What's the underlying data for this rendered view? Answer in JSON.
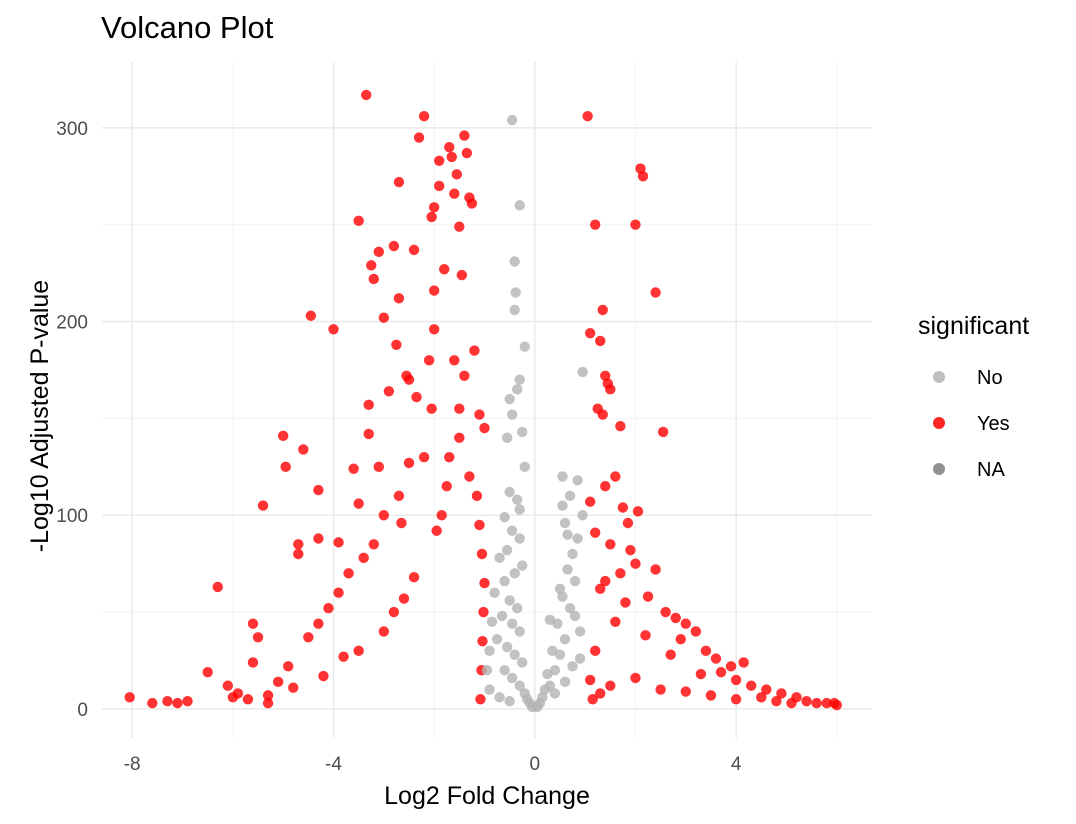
{
  "chart_data": {
    "type": "scatter",
    "title": "Volcano Plot",
    "xlabel": "Log2 Fold Change",
    "ylabel": "-Log10 Adjusted P-value",
    "xlim": [
      -8.6,
      6.7
    ],
    "ylim": [
      -15,
      334
    ],
    "x_ticks": [
      -8,
      -4,
      0,
      4
    ],
    "y_ticks": [
      0,
      100,
      200,
      300
    ],
    "x_tick_labels": [
      "-8",
      "-4",
      "0",
      "4"
    ],
    "y_tick_labels": [
      "0",
      "100",
      "200",
      "300"
    ],
    "grid": true,
    "legend": {
      "title": "significant",
      "position": "right",
      "entries": [
        {
          "label": "No",
          "color": "#b3b3b3"
        },
        {
          "label": "Yes",
          "color": "#ff0000"
        },
        {
          "label": "NA",
          "color": "#7f7f7f"
        }
      ]
    },
    "series": [
      {
        "name": "Yes",
        "color": "#ff0000",
        "points": [
          [
            -8.05,
            6
          ],
          [
            -6.3,
            63
          ],
          [
            -6.1,
            12
          ],
          [
            -5.9,
            8
          ],
          [
            -5.7,
            5
          ],
          [
            -5.6,
            44
          ],
          [
            -5.5,
            37
          ],
          [
            -5.6,
            24
          ],
          [
            -5.4,
            105
          ],
          [
            -5.3,
            3
          ],
          [
            -5.0,
            141
          ],
          [
            -4.95,
            125
          ],
          [
            -4.6,
            134
          ],
          [
            -4.45,
            203
          ],
          [
            -4.3,
            113
          ],
          [
            -4.7,
            85
          ],
          [
            -4.7,
            80
          ],
          [
            -4.3,
            88
          ],
          [
            -4.0,
            196
          ],
          [
            -3.9,
            86
          ],
          [
            -3.6,
            124
          ],
          [
            -3.5,
            252
          ],
          [
            -3.5,
            106
          ],
          [
            -3.35,
            317
          ],
          [
            -3.3,
            142
          ],
          [
            -3.3,
            157
          ],
          [
            -3.25,
            229
          ],
          [
            -3.2,
            222
          ],
          [
            -3.1,
            236
          ],
          [
            -3.1,
            125
          ],
          [
            -3.0,
            202
          ],
          [
            -2.9,
            164
          ],
          [
            -2.8,
            239
          ],
          [
            -2.75,
            188
          ],
          [
            -2.7,
            272
          ],
          [
            -2.7,
            212
          ],
          [
            -2.65,
            96
          ],
          [
            -2.55,
            172
          ],
          [
            -2.5,
            170
          ],
          [
            -2.4,
            237
          ],
          [
            -2.35,
            161
          ],
          [
            -2.2,
            306
          ],
          [
            -2.3,
            295
          ],
          [
            -2.05,
            254
          ],
          [
            -2.0,
            259
          ],
          [
            -2.0,
            196
          ],
          [
            -2.0,
            216
          ],
          [
            -1.9,
            283
          ],
          [
            -1.9,
            270
          ],
          [
            -1.8,
            227
          ],
          [
            -1.7,
            290
          ],
          [
            -1.65,
            285
          ],
          [
            -1.6,
            266
          ],
          [
            -1.55,
            276
          ],
          [
            -1.5,
            249
          ],
          [
            -1.45,
            224
          ],
          [
            -1.4,
            296
          ],
          [
            -1.35,
            287
          ],
          [
            -1.3,
            264
          ],
          [
            -1.25,
            261
          ],
          [
            -1.1,
            152
          ],
          [
            -1.0,
            145
          ],
          [
            -1.2,
            185
          ],
          [
            -1.4,
            172
          ],
          [
            -1.5,
            155
          ],
          [
            -1.6,
            180
          ],
          [
            -2.1,
            180
          ],
          [
            -2.05,
            155
          ],
          [
            -2.2,
            130
          ],
          [
            -2.5,
            127
          ],
          [
            -2.7,
            110
          ],
          [
            -3.0,
            100
          ],
          [
            -3.2,
            85
          ],
          [
            -3.4,
            78
          ],
          [
            -3.7,
            70
          ],
          [
            -3.9,
            60
          ],
          [
            -4.1,
            52
          ],
          [
            -4.3,
            44
          ],
          [
            -4.5,
            37
          ],
          [
            -4.9,
            22
          ],
          [
            -5.1,
            14
          ],
          [
            -6.5,
            19
          ],
          [
            -6.9,
            4
          ],
          [
            -7.1,
            3
          ],
          [
            -7.3,
            4
          ],
          [
            -7.6,
            3
          ],
          [
            -6.0,
            6
          ],
          [
            -5.3,
            7
          ],
          [
            -4.8,
            11
          ],
          [
            -4.2,
            17
          ],
          [
            -3.8,
            27
          ],
          [
            -3.5,
            30
          ],
          [
            -3.0,
            40
          ],
          [
            -2.8,
            50
          ],
          [
            -2.6,
            57
          ],
          [
            -2.4,
            68
          ],
          [
            -1.95,
            92
          ],
          [
            -1.85,
            100
          ],
          [
            -1.75,
            115
          ],
          [
            -1.7,
            130
          ],
          [
            -1.5,
            140
          ],
          [
            -1.3,
            120
          ],
          [
            -1.15,
            110
          ],
          [
            -1.1,
            95
          ],
          [
            -1.05,
            80
          ],
          [
            -1.0,
            65
          ],
          [
            -1.02,
            50
          ],
          [
            -1.04,
            35
          ],
          [
            -1.06,
            20
          ],
          [
            -1.08,
            5
          ],
          [
            1.05,
            306
          ],
          [
            1.2,
            250
          ],
          [
            2.1,
            279
          ],
          [
            2.15,
            275
          ],
          [
            2.0,
            250
          ],
          [
            2.4,
            215
          ],
          [
            1.35,
            206
          ],
          [
            1.1,
            194
          ],
          [
            1.3,
            190
          ],
          [
            1.4,
            172
          ],
          [
            1.45,
            168
          ],
          [
            1.5,
            165
          ],
          [
            1.25,
            155
          ],
          [
            1.35,
            152
          ],
          [
            1.7,
            146
          ],
          [
            2.55,
            143
          ],
          [
            1.6,
            120
          ],
          [
            1.4,
            115
          ],
          [
            1.1,
            107
          ],
          [
            1.75,
            104
          ],
          [
            2.05,
            102
          ],
          [
            1.85,
            96
          ],
          [
            1.2,
            91
          ],
          [
            1.5,
            85
          ],
          [
            1.9,
            82
          ],
          [
            2.0,
            75
          ],
          [
            2.4,
            72
          ],
          [
            1.7,
            70
          ],
          [
            1.4,
            66
          ],
          [
            1.3,
            62
          ],
          [
            2.25,
            58
          ],
          [
            1.8,
            55
          ],
          [
            2.6,
            50
          ],
          [
            2.8,
            47
          ],
          [
            3.0,
            44
          ],
          [
            3.2,
            40
          ],
          [
            2.9,
            36
          ],
          [
            3.4,
            30
          ],
          [
            3.6,
            26
          ],
          [
            3.9,
            22
          ],
          [
            4.15,
            24
          ],
          [
            3.7,
            19
          ],
          [
            4.0,
            15
          ],
          [
            4.3,
            12
          ],
          [
            4.6,
            10
          ],
          [
            4.9,
            8
          ],
          [
            5.2,
            6
          ],
          [
            5.4,
            4
          ],
          [
            5.6,
            3
          ],
          [
            5.8,
            3
          ],
          [
            5.95,
            3
          ],
          [
            6.0,
            2
          ],
          [
            4.5,
            6
          ],
          [
            4.8,
            4
          ],
          [
            5.1,
            3
          ],
          [
            3.3,
            18
          ],
          [
            2.7,
            28
          ],
          [
            2.2,
            38
          ],
          [
            1.6,
            45
          ],
          [
            1.2,
            30
          ],
          [
            1.1,
            15
          ],
          [
            1.15,
            5
          ],
          [
            1.3,
            8
          ],
          [
            1.5,
            12
          ],
          [
            2.0,
            16
          ],
          [
            2.5,
            10
          ],
          [
            3.0,
            9
          ],
          [
            3.5,
            7
          ],
          [
            4.0,
            5
          ]
        ]
      },
      {
        "name": "No",
        "color": "#b3b3b3",
        "points": [
          [
            -0.45,
            304
          ],
          [
            -0.3,
            260
          ],
          [
            -0.4,
            231
          ],
          [
            -0.38,
            215
          ],
          [
            -0.4,
            206
          ],
          [
            -0.2,
            187
          ],
          [
            -0.3,
            170
          ],
          [
            -0.35,
            165
          ],
          [
            -0.5,
            160
          ],
          [
            -0.45,
            152
          ],
          [
            -0.55,
            140
          ],
          [
            -0.25,
            143
          ],
          [
            -0.2,
            125
          ],
          [
            -0.5,
            112
          ],
          [
            -0.35,
            108
          ],
          [
            -0.3,
            103
          ],
          [
            -0.6,
            99
          ],
          [
            -0.45,
            92
          ],
          [
            -0.3,
            88
          ],
          [
            -0.55,
            82
          ],
          [
            -0.7,
            78
          ],
          [
            -0.25,
            74
          ],
          [
            -0.4,
            70
          ],
          [
            -0.6,
            66
          ],
          [
            -0.8,
            60
          ],
          [
            -0.5,
            56
          ],
          [
            -0.35,
            52
          ],
          [
            -0.65,
            48
          ],
          [
            -0.45,
            44
          ],
          [
            -0.3,
            40
          ],
          [
            -0.75,
            36
          ],
          [
            -0.55,
            32
          ],
          [
            -0.4,
            28
          ],
          [
            -0.25,
            24
          ],
          [
            -0.6,
            20
          ],
          [
            -0.45,
            16
          ],
          [
            -0.3,
            12
          ],
          [
            -0.2,
            8
          ],
          [
            -0.15,
            5
          ],
          [
            -0.1,
            3
          ],
          [
            -0.9,
            30
          ],
          [
            -0.85,
            45
          ],
          [
            -0.95,
            20
          ],
          [
            -0.9,
            10
          ],
          [
            -0.7,
            6
          ],
          [
            -0.5,
            4
          ],
          [
            -0.05,
            1
          ],
          [
            0.05,
            1
          ],
          [
            0.1,
            3
          ],
          [
            0.15,
            6
          ],
          [
            0.3,
            12
          ],
          [
            0.4,
            20
          ],
          [
            0.5,
            28
          ],
          [
            0.6,
            36
          ],
          [
            0.45,
            44
          ],
          [
            0.7,
            52
          ],
          [
            0.55,
            58
          ],
          [
            0.8,
            66
          ],
          [
            0.65,
            72
          ],
          [
            0.75,
            80
          ],
          [
            0.85,
            88
          ],
          [
            0.6,
            96
          ],
          [
            0.95,
            100
          ],
          [
            0.55,
            105
          ],
          [
            0.7,
            110
          ],
          [
            0.55,
            120
          ],
          [
            0.85,
            118
          ],
          [
            0.95,
            174
          ],
          [
            0.8,
            48
          ],
          [
            0.9,
            40
          ],
          [
            0.35,
            30
          ],
          [
            0.25,
            18
          ],
          [
            0.2,
            10
          ],
          [
            0.4,
            8
          ],
          [
            0.6,
            14
          ],
          [
            0.75,
            22
          ],
          [
            0.9,
            26
          ],
          [
            0.5,
            62
          ],
          [
            0.65,
            90
          ],
          [
            0.3,
            46
          ]
        ]
      }
    ]
  }
}
